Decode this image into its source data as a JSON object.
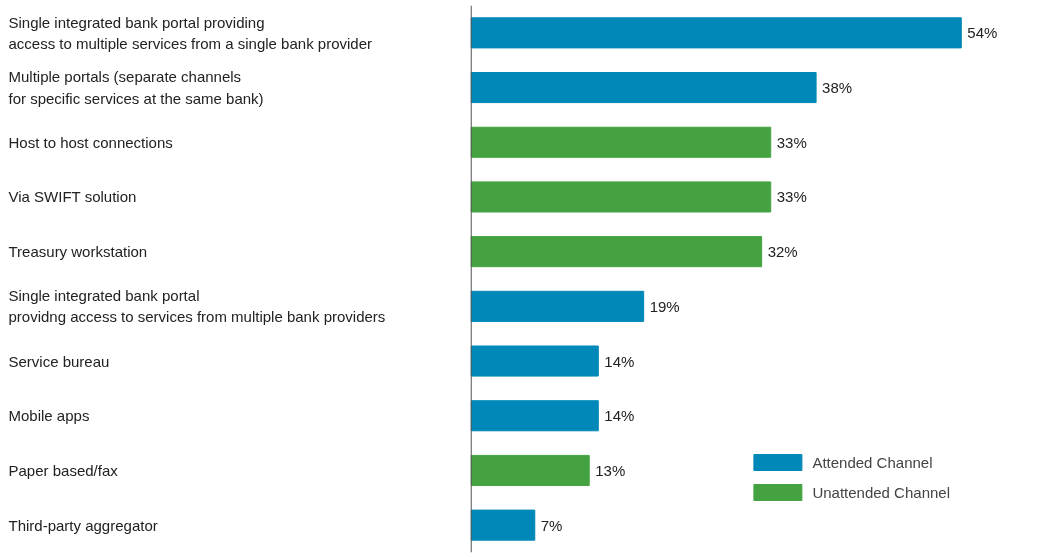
{
  "chart_data": {
    "type": "bar",
    "orientation": "horizontal",
    "categories": [
      "Single integrated bank portal providing\naccess to multiple services from a single bank provider",
      "Multiple portals (separate channels\nfor specific services at the same bank)",
      "Host to host connections",
      "Via SWIFT solution",
      "Treasury workstation",
      "Single integrated bank portal\nprovidng access to services from multiple bank providers",
      "Service bureau",
      "Mobile apps",
      "Paper based/fax",
      "Third-party aggregator"
    ],
    "series": [
      {
        "name": "Attended Channel",
        "color": "#0088b8",
        "values": [
          54,
          38,
          null,
          null,
          null,
          19,
          14,
          14,
          null,
          7
        ],
        "value_labels": [
          "54%",
          "38%",
          null,
          null,
          null,
          "19%",
          "14%",
          "14%",
          null,
          "7%"
        ]
      },
      {
        "name": "Unattended Channel",
        "color": "#44a340",
        "values": [
          null,
          null,
          33,
          33,
          32,
          null,
          null,
          null,
          13,
          null
        ],
        "value_labels": [
          null,
          null,
          "33%",
          "33%",
          "32%",
          null,
          null,
          null,
          "13%",
          null
        ]
      }
    ],
    "legend": "bottom right",
    "grid": false
  }
}
